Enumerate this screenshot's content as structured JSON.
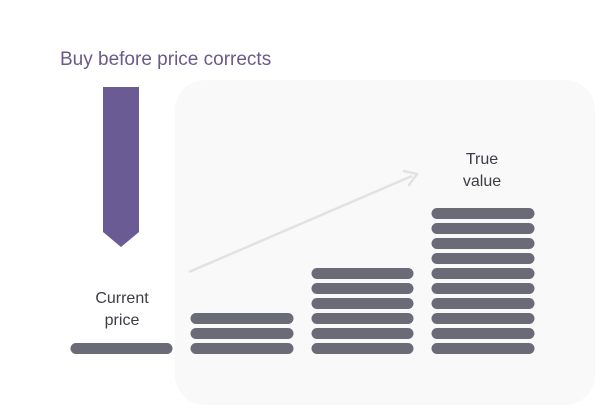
{
  "title": "Buy before price corrects",
  "labels": {
    "current_price": [
      "Current",
      "price"
    ],
    "true_value": [
      "True",
      "value"
    ]
  }
}
